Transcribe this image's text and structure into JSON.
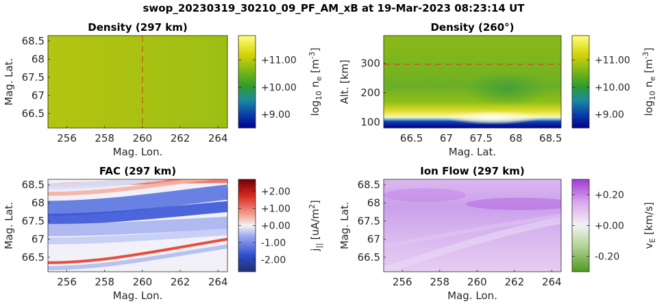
{
  "figure_title": "swop_20230319_30210_09_PF_AM_xB at 19-Mar-2023 08:23:14 UT",
  "colors": {
    "density_low": "#00008b",
    "density_mid": "#2e9a2e",
    "density_high": "#ffff80",
    "fac_neg": "#1f3b9a",
    "fac_pos": "#8b0000",
    "ion_neg": "#4d9a1f",
    "ion_pos": "#a23ad6",
    "marker_line": "#e0301e"
  },
  "chart_data": [
    {
      "type": "heatmap",
      "title": "Density (297 km)",
      "xlabel": "Mag. Lon.",
      "ylabel": "Mag. Lat.",
      "xlim": [
        255,
        264.5
      ],
      "ylim": [
        66.1,
        68.65
      ],
      "x_ticks": [
        256,
        258,
        260,
        262,
        264
      ],
      "x_tick_labels": [
        "256",
        "258",
        "260",
        "262",
        "264"
      ],
      "y_ticks": [
        66.5,
        67,
        67.5,
        68,
        68.5
      ],
      "y_tick_labels": [
        "66.5",
        "67",
        "67.5",
        "68",
        "68.5"
      ],
      "marker_line": {
        "axis": "x",
        "value": 260
      },
      "field_value": 10.7,
      "colorbar": {
        "label": "log10 ne [m-3]",
        "label_parts": [
          "log",
          "10",
          " n",
          "e",
          " [m",
          "-3",
          "]"
        ],
        "range": [
          8.5,
          11.9
        ],
        "ticks": [
          9,
          10,
          11
        ],
        "tick_labels": [
          "+9.00",
          "+10.00",
          "+11.00"
        ]
      }
    },
    {
      "type": "heatmap",
      "title": "Density (260°)",
      "xlabel": "Mag. Lat.",
      "ylabel": "Alt. [km]",
      "xlim": [
        66.1,
        68.65
      ],
      "ylim": [
        80,
        395
      ],
      "x_ticks": [
        66.5,
        67,
        67.5,
        68,
        68.5
      ],
      "x_tick_labels": [
        "66.5",
        "67",
        "67.5",
        "68",
        "68.5"
      ],
      "y_ticks": [
        100,
        200,
        300
      ],
      "y_tick_labels": [
        "100",
        "200",
        "300"
      ],
      "marker_line": {
        "axis": "y",
        "value": 297
      },
      "colorbar": {
        "label": "log10 ne [m-3]",
        "label_parts": [
          "log",
          "10",
          " n",
          "e",
          " [m",
          "-3",
          "]"
        ],
        "range": [
          8.5,
          11.9
        ],
        "ticks": [
          9,
          10,
          11
        ],
        "tick_labels": [
          "+9.00",
          "+10.00",
          "+11.00"
        ]
      }
    },
    {
      "type": "heatmap",
      "title": "FAC (297 km)",
      "xlabel": "Mag. Lon.",
      "ylabel": "Mag. Lat.",
      "xlim": [
        255,
        264.5
      ],
      "ylim": [
        66.1,
        68.65
      ],
      "x_ticks": [
        256,
        258,
        260,
        262,
        264
      ],
      "x_tick_labels": [
        "256",
        "258",
        "260",
        "262",
        "264"
      ],
      "y_ticks": [
        66.5,
        67,
        67.5,
        68,
        68.5
      ],
      "y_tick_labels": [
        "66.5",
        "67",
        "67.5",
        "68",
        "68.5"
      ],
      "colorbar": {
        "label": "j|| [uA/m2]",
        "label_parts": [
          "j",
          "||",
          " [uA/m",
          "2",
          "]"
        ],
        "range": [
          -2.7,
          2.7
        ],
        "ticks": [
          -2,
          -1,
          0,
          1,
          2
        ],
        "tick_labels": [
          "-2.00",
          "-1.00",
          "+0.00",
          "+1.00",
          "+2.00"
        ]
      }
    },
    {
      "type": "heatmap",
      "title": "Ion Flow (297 km)",
      "xlabel": "Mag. Lon.",
      "ylabel": "Mag. Lat.",
      "xlim": [
        255,
        264.5
      ],
      "ylim": [
        66.1,
        68.65
      ],
      "x_ticks": [
        256,
        258,
        260,
        262,
        264
      ],
      "x_tick_labels": [
        "256",
        "258",
        "260",
        "262",
        "264"
      ],
      "y_ticks": [
        66.5,
        67,
        67.5,
        68,
        68.5
      ],
      "y_tick_labels": [
        "66.5",
        "67",
        "67.5",
        "68",
        "68.5"
      ],
      "colorbar": {
        "label": "vE [km/s]",
        "label_parts": [
          "v",
          "E",
          " [km/s]"
        ],
        "range": [
          -0.3,
          0.3
        ],
        "ticks": [
          -0.2,
          0,
          0.2
        ],
        "tick_labels": [
          "-0.20",
          "+0.00",
          "+0.20"
        ]
      }
    }
  ]
}
